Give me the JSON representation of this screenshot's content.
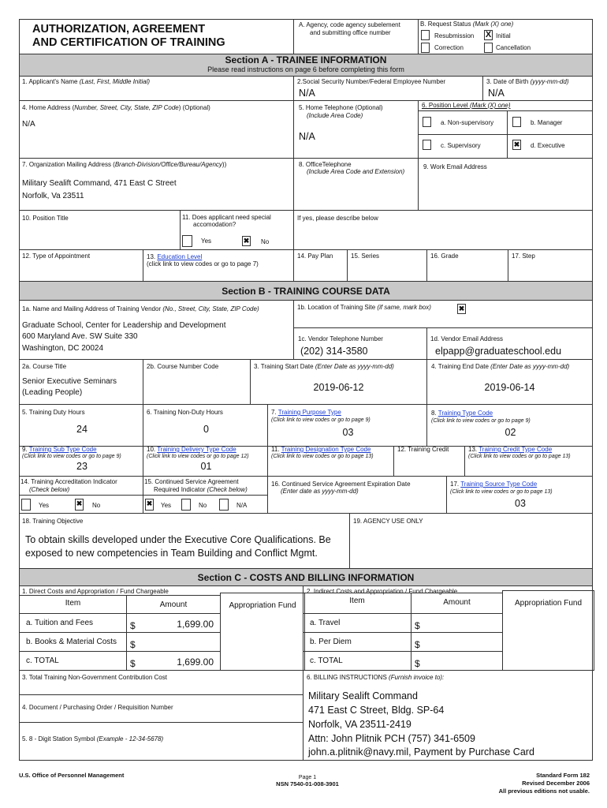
{
  "header": {
    "title1": "AUTHORIZATION, AGREEMENT",
    "title2": "AND CERTIFICATION OF TRAINING",
    "agency1": "A. Agency, code agency subelement",
    "agency2": "and submitting office number",
    "status_label": "B. Request Status",
    "status_hint": "(Mark (X) one)",
    "status_options": [
      {
        "label": "Resubmission",
        "checked": false
      },
      {
        "label": "Initial",
        "checked": true
      },
      {
        "label": "Correction",
        "checked": false
      },
      {
        "label": "Cancellation",
        "checked": false
      }
    ]
  },
  "secA": {
    "title": "Section A - TRAINEE INFORMATION",
    "sub": "Please read instructions on page 6 before completing this form",
    "f1": "1. Applicant's Name",
    "f1h": "(Last, First, Middle Initial)",
    "f2": "2.Social Security Number/Federal Employee Number",
    "f2v": "N/A",
    "f3": "3. Date of Birth",
    "f3h": "(yyyy-mm-dd)",
    "f3v": "N/A",
    "f4": "4. Home Address (",
    "f4h": "Number, Street, City, State, ZIP Code",
    "f4t": ") (Optional)",
    "f4v": "N/A",
    "f5": "5. Home Telephone (Optional)",
    "f5h": "(Include Area Code)",
    "f5v": "N/A",
    "f6": "6. Position Level",
    "f6h": "(Mark (X) one)",
    "f6opts": [
      {
        "label": "a. Non-supervisory",
        "checked": false
      },
      {
        "label": "b. Manager",
        "checked": false
      },
      {
        "label": "c. Supervisory",
        "checked": false
      },
      {
        "label": "d. Executive",
        "checked": true
      }
    ],
    "f7": "7. Organization Mailing Address (",
    "f7h": "Branch-Division/Office/Bureau/Agency",
    "f7t": "))",
    "f7v1": "Military Sealift Command, 471 East C Street",
    "f7v2": "Norfolk, Va  23511",
    "f8": "8. OfficeTelephone",
    "f8h": "(Include Area Code and Extension)",
    "f9": "9. Work Email Address",
    "f10": "10. Position Title",
    "f11a": "11. Does applicant need special",
    "f11b": "accomodation?",
    "f11yes": "Yes",
    "f11no": "No",
    "f11_checked": "No",
    "f11c": "If yes, please describe below",
    "f12": "12. Type of Appointment",
    "f13n": "13. ",
    "f13": "Education Level",
    "f13h": "(click link to view codes or go to page 7)",
    "f14": "14. Pay Plan",
    "f15": "15. Series",
    "f16": "16. Grade",
    "f17": "17. Step"
  },
  "secB": {
    "title": "Section B - TRAINING COURSE DATA",
    "f1a": "1a. Name and Mailing Address of Training Vendor",
    "f1ah": "(No., Street, City, State, ZIP Code)",
    "f1av": [
      "Graduate School, Center for Leadership and Development",
      "600 Maryland Ave. SW Suite 330",
      "Washington, DC  20024"
    ],
    "f1b": "1b. Location of Training Site",
    "f1bh": "(if same, mark box)",
    "f1b_checked": true,
    "f1c": "1c. Vendor Telephone Number",
    "f1cv": "(202) 314-3580",
    "f1d": "1d. Vendor Email Address",
    "f1dv": "elpapp@graduateschool.edu",
    "f2a": "2a. Course Title",
    "f2av1": "Senior Executive Seminars",
    "f2av2": "(Leading People)",
    "f2b": "2b. Course Number Code",
    "f3": "3. Training Start Date",
    "f3h": "(Enter Date as yyyy-mm-dd)",
    "f3v": "2019-06-12",
    "f4": "4. Training End Date",
    "f4h": "(Enter Date as yyyy-mm-dd)",
    "f4v": "2019-06-14",
    "f5": "5. Training Duty Hours",
    "f5v": "24",
    "f6": "6. Training Non-Duty Hours",
    "f6v": "0",
    "f7n": "7. ",
    "f7": "Training Purpose Type",
    "f7h": "(Click link to view codes or go to page 9)",
    "f7v": "03",
    "f8n": "8. ",
    "f8": "Training Type Code",
    "f8h": "(Click link to view codes or go to page 9)",
    "f8v": "02",
    "f9n": "9. ",
    "f9": "Training Sub Type Code",
    "f9h": "(Click link to view codes or go to page 9)",
    "f9v": "23",
    "f10n": "10. ",
    "f10": "Training Delivery Type Code",
    "f10h": "(Click link to view codes or go to page 12)",
    "f10v": "01",
    "f11n": "11. ",
    "f11": "Training Designation Type Code",
    "f11h": "(Click link to view codes or go to page 13)",
    "f12": "12. Training Credit",
    "f13n": "13. ",
    "f13": "Training Credit Type Code",
    "f13h": "(Click link to view codes or go to page 13)",
    "f14": "14. Training Accreditation Indicator",
    "f14h": "(Check below)",
    "f14yes": "Yes",
    "f14no": "No",
    "f14_checked": "No",
    "f15a": "15.  Continued Service Agreement",
    "f15b": "Required Indicator",
    "f15h": "(Check below)",
    "f15yes": "Yes",
    "f15no": "No",
    "f15na": "N/A",
    "f15_checked": "Yes",
    "f16": "16. Continued Service Agreement Expiration Date",
    "f16h": "(Enter date as yyyy-mm-dd)",
    "f17n": "17. ",
    "f17": "Training Source Type Code",
    "f17h": "(Click link to view codes or go to page 13)",
    "f17v": "03",
    "f18": "18. Training Objective",
    "f18v1": "To obtain skills developed under the Executive Core Qualifications. Be",
    "f18v2": "exposed to new competencies in Team Building and Conflict Mgmt.",
    "f19": "19. AGENCY USE ONLY"
  },
  "secC": {
    "title": "Section C - COSTS AND BILLING INFORMATION",
    "d_label": "1. Direct Costs and Appropriation / Fund Chargeable",
    "i_label": "2. Indirect Costs and Appropriation / Fund Chargeable",
    "col_item": "Item",
    "col_amount": "Amount",
    "col_fund": "Appropriation Fund",
    "currency": "$",
    "direct": [
      {
        "item": "a. Tuition and Fees",
        "amount": "1,699.00"
      },
      {
        "item": "b. Books & Material Costs",
        "amount": ""
      },
      {
        "item": "c. TOTAL",
        "amount": "1,699.00"
      }
    ],
    "indirect": [
      {
        "item": "a. Travel",
        "amount": ""
      },
      {
        "item": "b. Per Diem",
        "amount": ""
      },
      {
        "item": "c. TOTAL",
        "amount": ""
      }
    ],
    "f3": "3. Total Training Non-Government Contribution Cost",
    "f4": "4. Document / Purchasing Order / Requisition Number",
    "f5": "5. 8 - Digit Station Symbol",
    "f5h": "(Example - 12-34-5678)",
    "f6": "6. BILLING INSTRUCTIONS",
    "f6h": "(Furnish invoice to):",
    "f6v": [
      "Military Sealift Command",
      "471 East C Street, Bldg. SP-64",
      "Norfolk, VA  23511-2419",
      "Attn: John Plitnik PCH (757) 341-6509",
      "john.a.plitnik@navy.mil, Payment by Purchase Card"
    ]
  },
  "footer": {
    "agency": "U.S. Office of Personnel Management",
    "page": "Page 1",
    "nsn": "NSN 7540-01-008-3901",
    "form": "Standard Form 182",
    "rev": "Revised December 2006",
    "note": "All previous editions not usable."
  }
}
